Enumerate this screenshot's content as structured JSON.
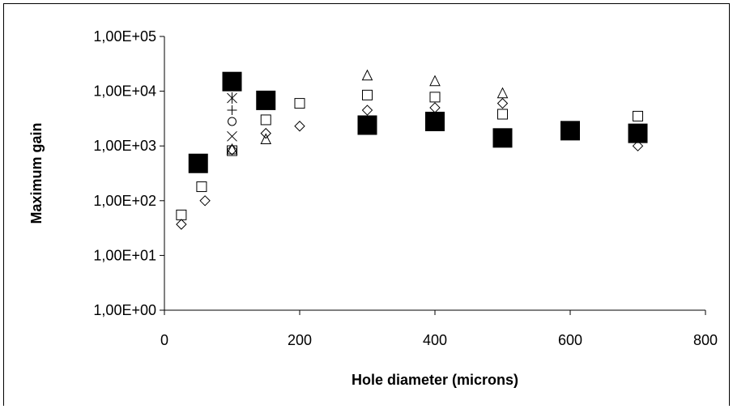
{
  "chart_data": {
    "type": "scatter",
    "title": "",
    "xlabel": "Hole diameter (microns)",
    "ylabel": "Maximum gain",
    "xlim": [
      0,
      800
    ],
    "ylim": [
      1,
      100000
    ],
    "y_scale": "log",
    "grid": false,
    "legend": "none",
    "x_ticks": [
      "0",
      "200",
      "400",
      "600",
      "800"
    ],
    "y_ticks": [
      "1,00E+00",
      "1,00E+01",
      "1,00E+02",
      "1,00E+03",
      "1,00E+04",
      "1,00E+05"
    ],
    "x_tick_values": [
      0,
      200,
      400,
      600,
      800
    ],
    "y_tick_values": [
      1,
      10,
      100,
      1000,
      10000,
      100000
    ],
    "series": [
      {
        "marker": "filled-square",
        "points": [
          [
            50,
            480
          ],
          [
            100,
            15000
          ],
          [
            150,
            6800
          ],
          [
            300,
            2400
          ],
          [
            400,
            2800
          ],
          [
            500,
            1400
          ],
          [
            600,
            1900
          ],
          [
            700,
            1700
          ]
        ]
      },
      {
        "marker": "open-square",
        "points": [
          [
            25,
            55
          ],
          [
            55,
            180
          ],
          [
            100,
            820
          ],
          [
            150,
            3000
          ],
          [
            200,
            6000
          ],
          [
            300,
            8500
          ],
          [
            400,
            7800
          ],
          [
            500,
            3800
          ],
          [
            700,
            3500
          ]
        ]
      },
      {
        "marker": "diamond",
        "points": [
          [
            25,
            37
          ],
          [
            60,
            100
          ],
          [
            100,
            850
          ],
          [
            150,
            1700
          ],
          [
            200,
            2300
          ],
          [
            300,
            4500
          ],
          [
            400,
            5000
          ],
          [
            500,
            6000
          ],
          [
            700,
            1000
          ]
        ]
      },
      {
        "marker": "triangle",
        "points": [
          [
            100,
            850
          ],
          [
            150,
            1300
          ],
          [
            300,
            19000
          ],
          [
            400,
            15000
          ],
          [
            500,
            9000
          ]
        ]
      },
      {
        "marker": "circle",
        "points": [
          [
            100,
            2800
          ]
        ]
      },
      {
        "marker": "x",
        "points": [
          [
            100,
            1500
          ]
        ]
      },
      {
        "marker": "star",
        "points": [
          [
            100,
            7500
          ]
        ]
      },
      {
        "marker": "plus",
        "points": [
          [
            100,
            4500
          ]
        ]
      }
    ]
  }
}
